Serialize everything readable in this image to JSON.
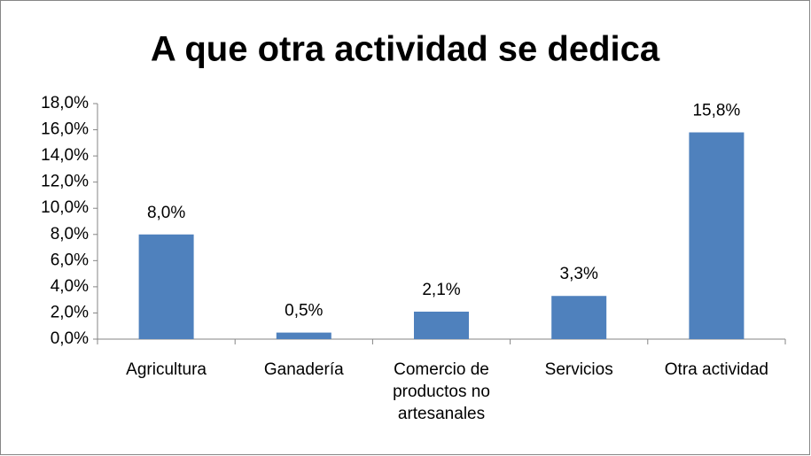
{
  "chart_data": {
    "type": "bar",
    "title": "A que otra actividad se dedica",
    "categories": [
      "Agricultura",
      "Ganadería",
      "Comercio de productos no artesanales",
      "Servicios",
      "Otra actividad"
    ],
    "values": [
      8.0,
      0.5,
      2.1,
      3.3,
      15.8
    ],
    "value_labels": [
      "8,0%",
      "0,5%",
      "2,1%",
      "3,3%",
      "15,8%"
    ],
    "color": "#4f81bd",
    "ylim": [
      0,
      18
    ],
    "yticks": [
      {
        "value": 0,
        "label": "0,0%"
      },
      {
        "value": 2,
        "label": "2,0%"
      },
      {
        "value": 4,
        "label": "4,0%"
      },
      {
        "value": 6,
        "label": "6,0%"
      },
      {
        "value": 8,
        "label": "8,0%"
      },
      {
        "value": 10,
        "label": "10,0%"
      },
      {
        "value": 12,
        "label": "12,0%"
      },
      {
        "value": 14,
        "label": "14,0%"
      },
      {
        "value": 16,
        "label": "16,0%"
      },
      {
        "value": 18,
        "label": "18,0%"
      }
    ],
    "grid": false
  }
}
